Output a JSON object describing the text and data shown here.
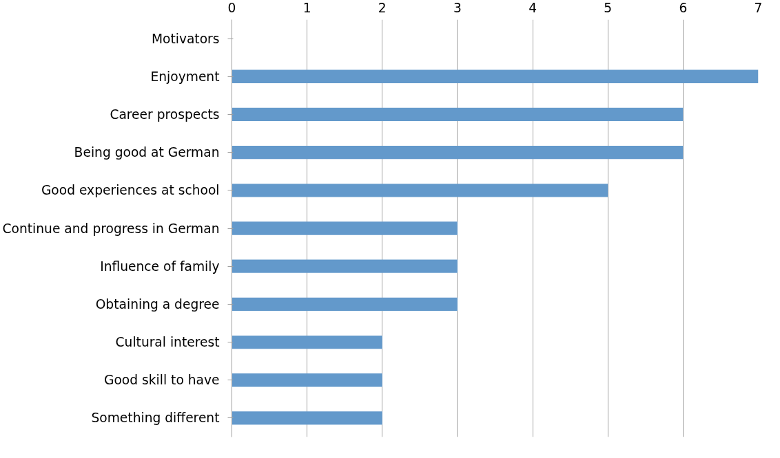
{
  "chart_data": {
    "type": "bar",
    "orientation": "horizontal",
    "categories": [
      "Motivators",
      "Enjoyment",
      "Career prospects",
      "Being good at German",
      "Good experiences at school",
      "Continue and progress in German",
      "Influence of family",
      "Obtaining a degree",
      "Cultural interest",
      "Good skill to have",
      "Something different"
    ],
    "values": [
      null,
      7,
      6,
      6,
      5,
      3,
      3,
      3,
      2,
      2,
      2
    ],
    "color": "#6399cb",
    "xlim": [
      0,
      7
    ],
    "xticks": [
      0,
      1,
      2,
      3,
      4,
      5,
      6,
      7
    ],
    "grid": "x"
  }
}
